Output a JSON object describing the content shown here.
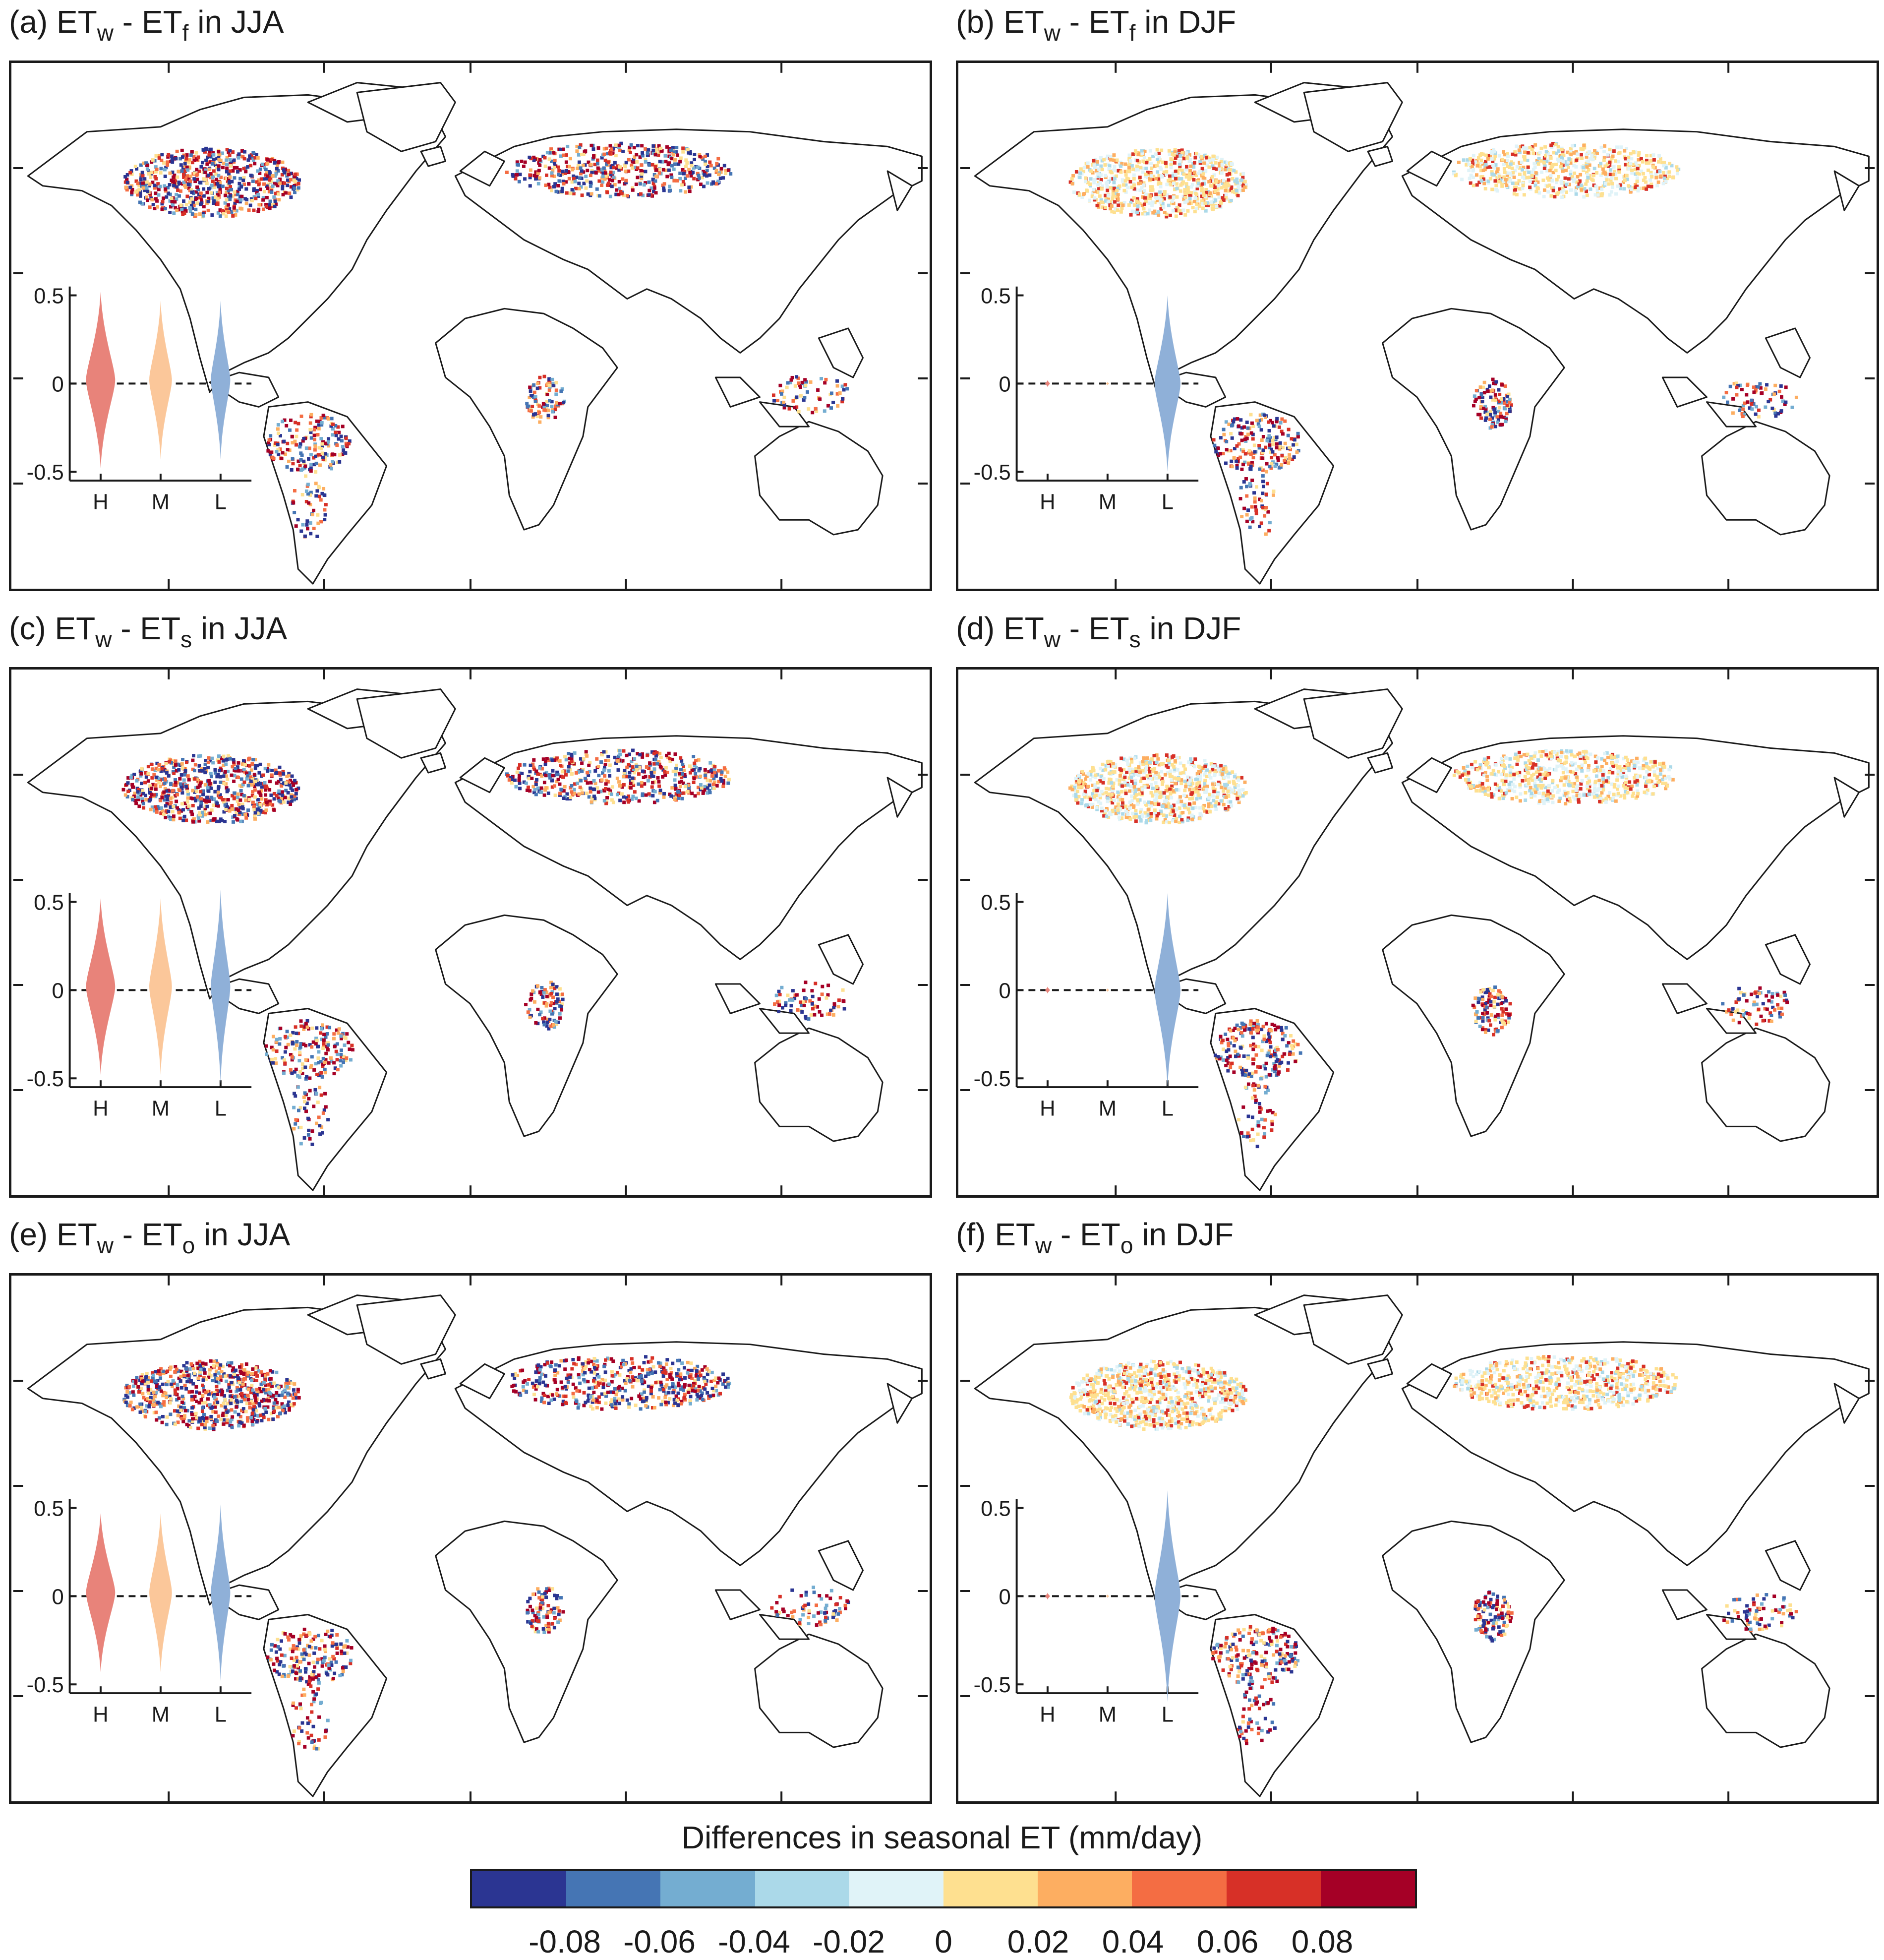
{
  "chart_data": {
    "type": "map",
    "panels": [
      {
        "id": "a",
        "title": {
          "prefix": "(a) ET",
          "sub1": "w",
          "mid": " - ET",
          "sub2": "f",
          "suffix": " in JJA"
        },
        "season": "JJA",
        "comparison": "ETw - ETf",
        "violin": {
          "categories": [
            "H",
            "M",
            "L"
          ],
          "yticks": [
            "0.5",
            "0",
            "-0.5"
          ],
          "ylim": [
            -0.55,
            0.55
          ],
          "widths": [
            0.09,
            0.07,
            0.06
          ],
          "spreads": [
            0.5,
            0.45,
            0.45
          ],
          "centers": [
            0.02,
            0.02,
            0.02
          ]
        }
      },
      {
        "id": "b",
        "title": {
          "prefix": "(b) ET",
          "sub1": "w",
          "mid": " - ET",
          "sub2": "f",
          "suffix": " in DJF"
        },
        "season": "DJF",
        "comparison": "ETw - ETf",
        "violin": {
          "categories": [
            "H",
            "M",
            "L"
          ],
          "yticks": [
            "0.5",
            "0",
            "-0.5"
          ],
          "ylim": [
            -0.55,
            0.55
          ],
          "widths": [
            0.015,
            0.01,
            0.08
          ],
          "spreads": [
            0.02,
            0.01,
            0.5
          ],
          "centers": [
            0,
            0,
            0
          ]
        }
      },
      {
        "id": "c",
        "title": {
          "prefix": "(c) ET",
          "sub1": "w",
          "mid": " - ET",
          "sub2": "s",
          "suffix": " in JJA"
        },
        "season": "JJA",
        "comparison": "ETw - ETs",
        "violin": {
          "categories": [
            "H",
            "M",
            "L"
          ],
          "yticks": [
            "0.5",
            "0",
            "-0.5"
          ],
          "ylim": [
            -0.55,
            0.55
          ],
          "widths": [
            0.09,
            0.07,
            0.06
          ],
          "spreads": [
            0.5,
            0.5,
            0.55
          ],
          "centers": [
            0.02,
            0.02,
            0.02
          ]
        }
      },
      {
        "id": "d",
        "title": {
          "prefix": "(d) ET",
          "sub1": "w",
          "mid": " - ET",
          "sub2": "s",
          "suffix": " in DJF"
        },
        "season": "DJF",
        "comparison": "ETw - ETs",
        "violin": {
          "categories": [
            "H",
            "M",
            "L"
          ],
          "yticks": [
            "0.5",
            "0",
            "-0.5"
          ],
          "ylim": [
            -0.55,
            0.55
          ],
          "widths": [
            0.015,
            0.01,
            0.08
          ],
          "spreads": [
            0.02,
            0.01,
            0.55
          ],
          "centers": [
            0,
            0,
            0
          ]
        }
      },
      {
        "id": "e",
        "title": {
          "prefix": "(e) ET",
          "sub1": "w",
          "mid": " - ET",
          "sub2": "o",
          "suffix": " in JJA"
        },
        "season": "JJA",
        "comparison": "ETw - ETo",
        "violin": {
          "categories": [
            "H",
            "M",
            "L"
          ],
          "yticks": [
            "0.5",
            "0",
            "-0.5"
          ],
          "ylim": [
            -0.55,
            0.55
          ],
          "widths": [
            0.09,
            0.07,
            0.06
          ],
          "spreads": [
            0.45,
            0.45,
            0.5
          ],
          "centers": [
            0.02,
            0.02,
            0.02
          ]
        }
      },
      {
        "id": "f",
        "title": {
          "prefix": "(f) ET",
          "sub1": "w",
          "mid": " - ET",
          "sub2": "o",
          "suffix": " in DJF"
        },
        "season": "DJF",
        "comparison": "ETw - ETo",
        "violin": {
          "categories": [
            "H",
            "M",
            "L"
          ],
          "yticks": [
            "0.5",
            "0",
            "-0.5"
          ],
          "ylim": [
            -0.55,
            0.55
          ],
          "widths": [
            0.015,
            0.01,
            0.08
          ],
          "spreads": [
            0.02,
            0.01,
            0.6
          ],
          "centers": [
            0,
            0,
            0
          ]
        }
      }
    ],
    "violin_colors": {
      "H": "#e8837a",
      "M": "#fbc79a",
      "L": "#8fb0d8"
    },
    "colorbar": {
      "title": "Differences in seasonal ET (mm/day)",
      "colors": [
        "#2b3592",
        "#4575b4",
        "#74add1",
        "#abd9e9",
        "#e0f3f8",
        "#fee090",
        "#fdae61",
        "#f46d43",
        "#d73027",
        "#a50026"
      ],
      "boundaries": [
        -0.1,
        -0.08,
        -0.06,
        -0.04,
        -0.02,
        0,
        0.02,
        0.04,
        0.06,
        0.08,
        0.1
      ],
      "tick_labels": [
        "-0.08",
        "-0.06",
        "-0.04",
        "-0.02",
        "0",
        "0.02",
        "0.04",
        "0.06",
        "0.08"
      ]
    }
  }
}
